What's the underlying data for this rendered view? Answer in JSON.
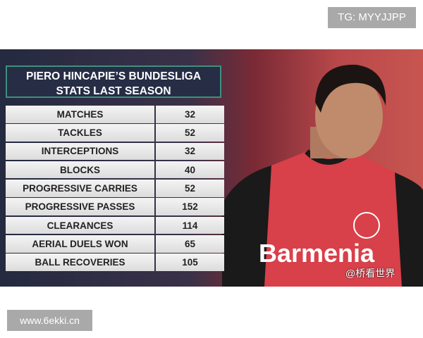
{
  "watermarks": {
    "top": "TG: MYYJJPP",
    "bottom": "www.6ekki.cn",
    "image": "@桥看世界"
  },
  "graphic": {
    "title_line1": "PIERO HINCAPIE’S BUNDESLIGA",
    "title_line2": "STATS LAST SEASON",
    "accent_color": "#3f8f7f",
    "rows": [
      {
        "label": "MATCHES",
        "value": "32"
      },
      {
        "label": "TACKLES",
        "value": "52"
      },
      {
        "label": "INTERCEPTIONS",
        "value": "32"
      },
      {
        "label": "BLOCKS",
        "value": "40"
      },
      {
        "label": "PROGRESSIVE CARRIES",
        "value": "52"
      },
      {
        "label": "PROGRESSIVE PASSES",
        "value": "152"
      },
      {
        "label": "CLEARANCES",
        "value": "114"
      },
      {
        "label": "AERIAL DUELS WON",
        "value": "65"
      },
      {
        "label": "BALL RECOVERIES",
        "value": "105"
      }
    ],
    "shirt_sponsor": "Barmenia"
  }
}
